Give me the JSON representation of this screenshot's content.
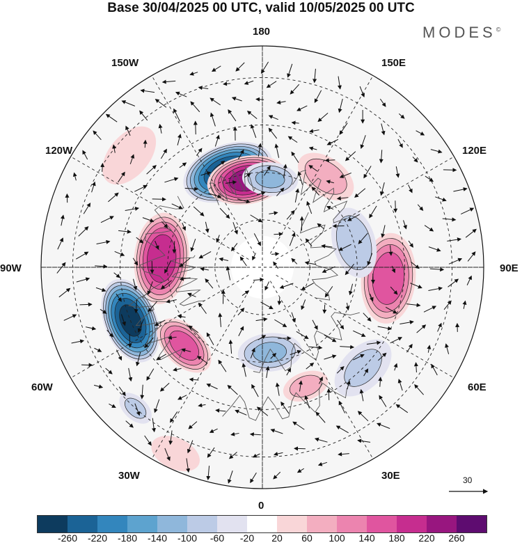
{
  "title": "Base 30/04/2025 00 UTC, valid 10/05/2025 00 UTC",
  "brand": "MODES",
  "brand_mark": "©",
  "longitude_labels": [
    {
      "key": "180",
      "text": "180"
    },
    {
      "key": "150W",
      "text": "150W"
    },
    {
      "key": "150E",
      "text": "150E"
    },
    {
      "key": "120W",
      "text": "120W"
    },
    {
      "key": "120E",
      "text": "120E"
    },
    {
      "key": "90W",
      "text": "90W"
    },
    {
      "key": "90E",
      "text": "90E"
    },
    {
      "key": "60W",
      "text": "60W"
    },
    {
      "key": "60E",
      "text": "60E"
    },
    {
      "key": "30W",
      "text": "30W"
    },
    {
      "key": "30E",
      "text": "30E"
    },
    {
      "key": "0",
      "text": "0"
    }
  ],
  "wind_scale_label": "30",
  "colorbar": {
    "colors": [
      "#0d3b5e",
      "#1b6396",
      "#3386bd",
      "#5da3cf",
      "#8fb7db",
      "#bccbe6",
      "#e2e2f0",
      "#ffffff",
      "#f9d6d8",
      "#f3aec0",
      "#ec84af",
      "#e0559f",
      "#c62d8f",
      "#98167f",
      "#5e0c70"
    ],
    "ticks": [
      "-260",
      "-220",
      "-180",
      "-140",
      "-100",
      "-60",
      "-20",
      "20",
      "60",
      "100",
      "140",
      "180",
      "220",
      "260"
    ]
  },
  "anomalies": [
    {
      "name": "neg-center-150w",
      "lon": -160,
      "lat": 58,
      "value": -270,
      "spread": 55
    },
    {
      "name": "pos-center-165w",
      "lon": -170,
      "lat": 62,
      "value": 240,
      "spread": 48
    },
    {
      "name": "neg-center-175e",
      "lon": 175,
      "lat": 62,
      "value": -100,
      "spread": 35
    },
    {
      "name": "pos-center-150e",
      "lon": 145,
      "lat": 55,
      "value": 80,
      "spread": 40
    },
    {
      "name": "pos-center-95w",
      "lon": -95,
      "lat": 58,
      "value": 210,
      "spread": 55
    },
    {
      "name": "neg-center-70w",
      "lon": -68,
      "lat": 45,
      "value": -270,
      "spread": 52
    },
    {
      "name": "pos-center-45w",
      "lon": -45,
      "lat": 55,
      "value": 160,
      "spread": 40
    },
    {
      "name": "neg-center-45w-low",
      "lon": -42,
      "lat": 30,
      "value": -60,
      "spread": 25
    },
    {
      "name": "neg-center-5e",
      "lon": 5,
      "lat": 63,
      "value": -100,
      "spread": 40
    },
    {
      "name": "pos-center-20e",
      "lon": 20,
      "lat": 50,
      "value": 70,
      "spread": 30
    },
    {
      "name": "pos-center-90e",
      "lon": 85,
      "lat": 50,
      "value": 170,
      "spread": 55
    },
    {
      "name": "neg-center-100e",
      "lon": 105,
      "lat": 60,
      "value": -90,
      "spread": 45
    },
    {
      "name": "neg-center-50e",
      "lon": 45,
      "lat": 45,
      "value": -60,
      "spread": 45
    },
    {
      "name": "pos-center-130w",
      "lon": -130,
      "lat": 35,
      "value": 50,
      "spread": 45
    },
    {
      "name": "pos-center-25w",
      "lon": -25,
      "lat": 25,
      "value": 40,
      "spread": 35
    }
  ]
}
